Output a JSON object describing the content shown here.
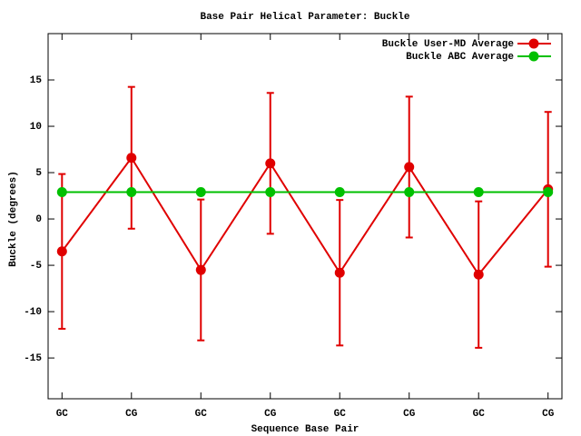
{
  "chart_data": {
    "type": "line",
    "title": "Base Pair Helical Parameter: Buckle",
    "x_label": "Sequence Base Pair",
    "y_label": "Buckle (degrees)",
    "categories": [
      "GC",
      "CG",
      "GC",
      "CG",
      "GC",
      "CG",
      "GC",
      "CG"
    ],
    "series": [
      {
        "name": "Buckle User-MD Average",
        "color": "#e00000",
        "values": [
          -3.5,
          6.6,
          -5.5,
          6.0,
          -5.8,
          5.6,
          -6.0,
          3.2
        ],
        "errors": [
          8.35,
          7.65,
          7.6,
          7.6,
          7.85,
          7.6,
          7.9,
          8.35
        ]
      },
      {
        "name": "Buckle ABC Average",
        "color": "#00c000",
        "values": [
          2.9,
          2.9,
          2.9,
          2.9,
          2.9,
          2.9,
          2.9,
          2.9
        ]
      }
    ],
    "ylim": [
      -19.4,
      20
    ],
    "yticks": [
      -15,
      -10,
      -5,
      0,
      5,
      10,
      15
    ],
    "legend": "top-right"
  }
}
